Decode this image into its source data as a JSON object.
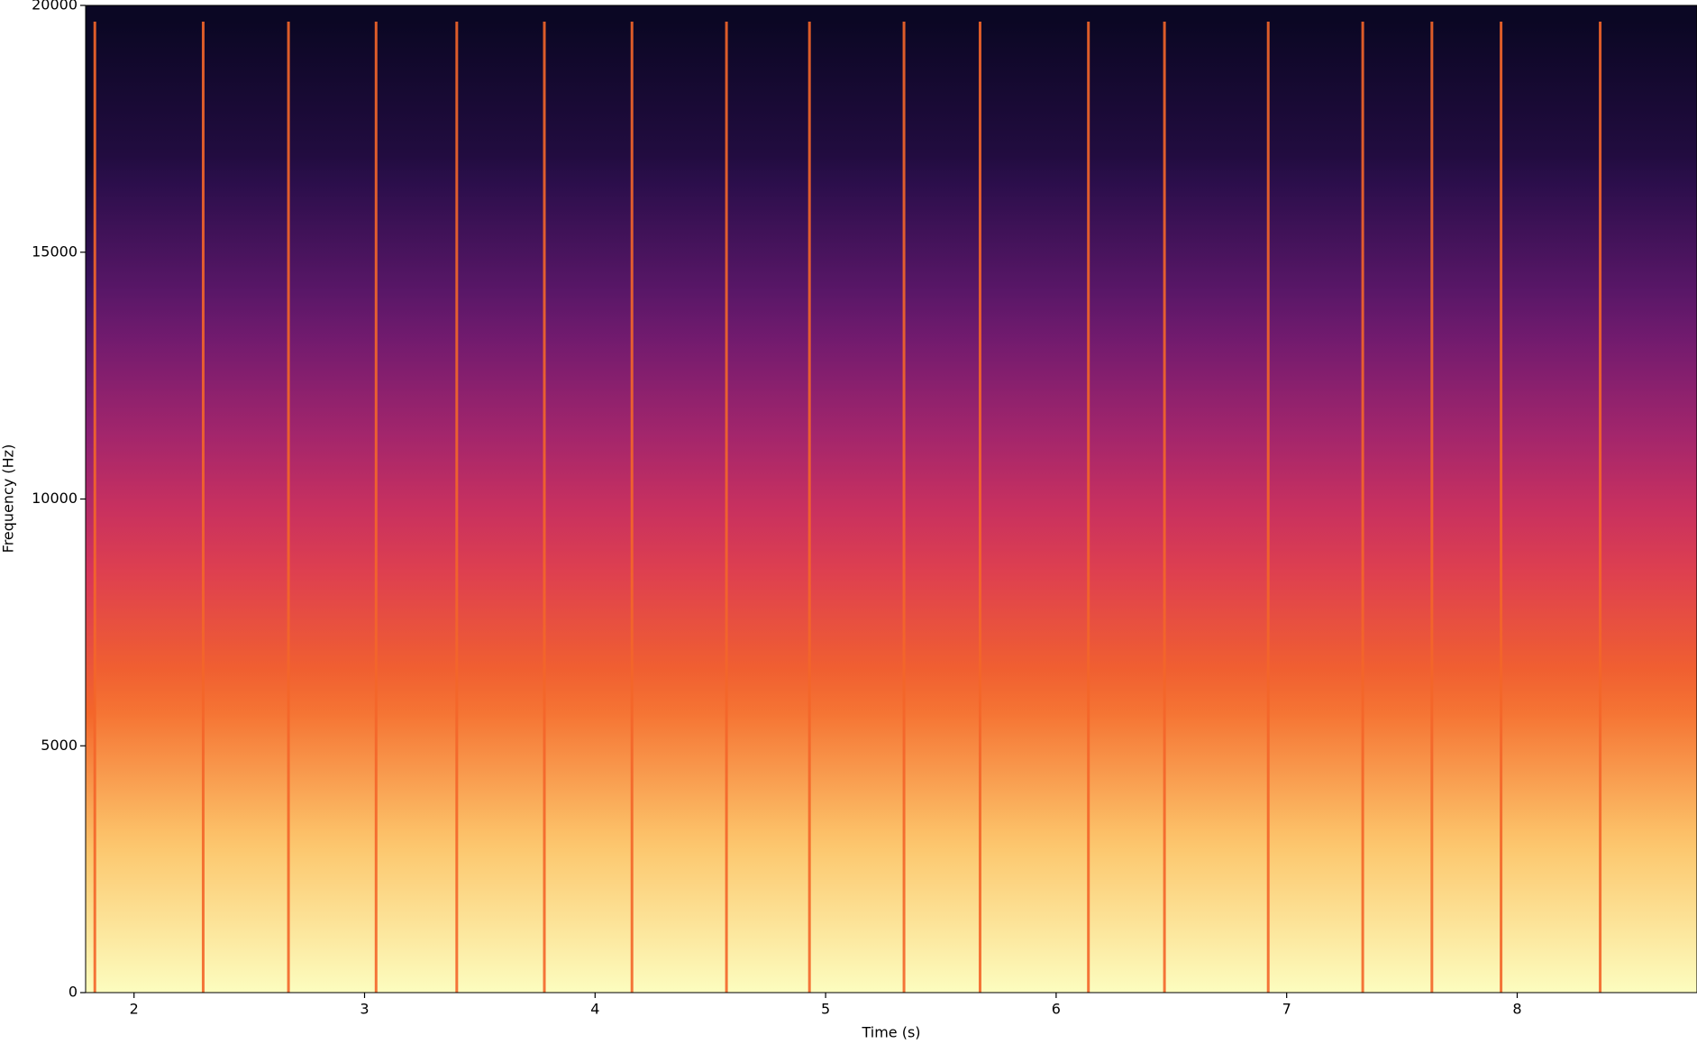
{
  "chart_data": {
    "type": "spectrogram",
    "x_label": "Time (s)",
    "y_label": "Frequency (Hz)",
    "xlim": [
      1.79,
      8.78
    ],
    "xticks": [
      2,
      3,
      4,
      5,
      6,
      7,
      8
    ],
    "ylim": [
      0,
      20000
    ],
    "yticks": [
      0,
      5000,
      10000,
      15000,
      20000
    ],
    "onsets": [
      1.83,
      2.3,
      2.67,
      3.05,
      3.4,
      3.78,
      4.16,
      4.57,
      4.93,
      5.34,
      5.67,
      6.14,
      6.47,
      6.92,
      7.33,
      7.63,
      7.93,
      8.36
    ],
    "colormap": [
      "#0b0724",
      "#3d1261",
      "#8b1f74",
      "#d8355a",
      "#f4662a",
      "#fcc56b",
      "#fcfdbf"
    ]
  }
}
